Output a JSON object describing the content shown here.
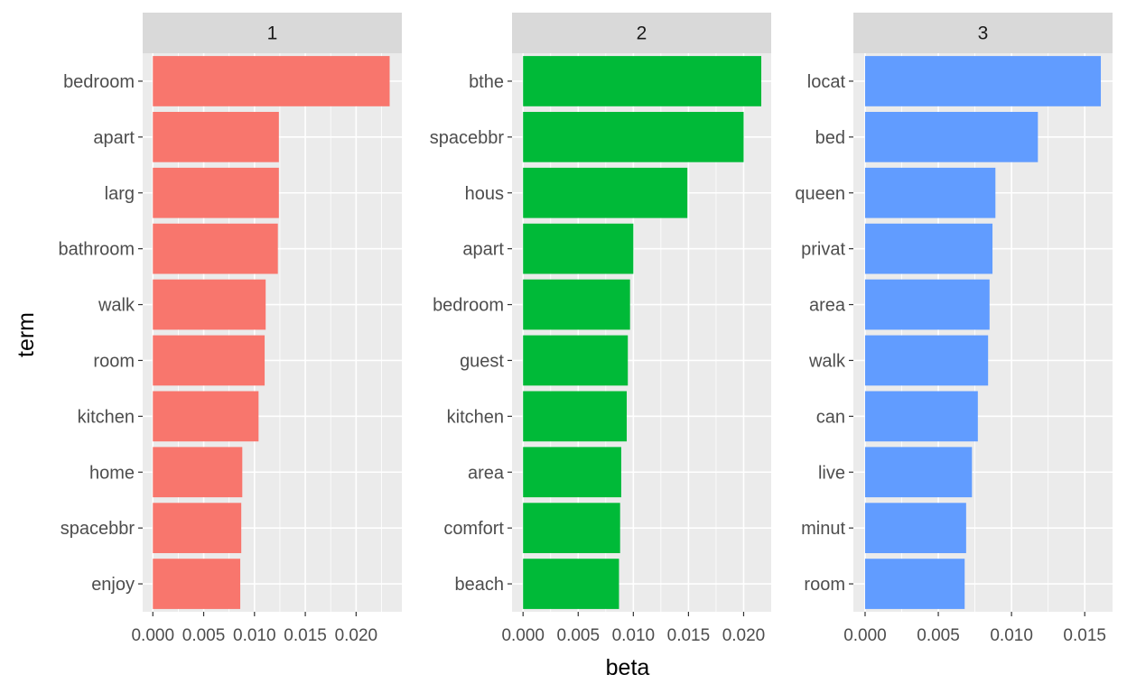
{
  "chart_data": {
    "type": "bar",
    "orientation": "horizontal",
    "facet": true,
    "xlabel": "beta",
    "ylabel": "term",
    "grid": true,
    "panels": [
      {
        "strip": "1",
        "color": "#F8766D",
        "xlim": [
          -0.001,
          0.0245
        ],
        "ticks": [
          0.0,
          0.005,
          0.01,
          0.015,
          0.02
        ],
        "tick_labels": [
          "0.000",
          "0.005",
          "0.010",
          "0.015",
          "0.020"
        ],
        "terms": [
          "bedroom",
          "apart",
          "larg",
          "bathroom",
          "walk",
          "room",
          "kitchen",
          "home",
          "spacebbr",
          "enjoy"
        ],
        "values": [
          0.0233,
          0.0124,
          0.0124,
          0.0123,
          0.0111,
          0.011,
          0.0104,
          0.0088,
          0.0087,
          0.0086
        ]
      },
      {
        "strip": "2",
        "color": "#00BA38",
        "xlim": [
          -0.001,
          0.0225
        ],
        "ticks": [
          0.0,
          0.005,
          0.01,
          0.015,
          0.02
        ],
        "tick_labels": [
          "0.000",
          "0.005",
          "0.010",
          "0.015",
          "0.020"
        ],
        "terms": [
          "bthe",
          "spacebbr",
          "hous",
          "apart",
          "bedroom",
          "guest",
          "kitchen",
          "area",
          "comfort",
          "beach"
        ],
        "values": [
          0.0216,
          0.02,
          0.0149,
          0.01,
          0.0097,
          0.0095,
          0.0094,
          0.0089,
          0.0088,
          0.0087
        ]
      },
      {
        "strip": "3",
        "color": "#619CFF",
        "xlim": [
          -0.0008,
          0.0169
        ],
        "ticks": [
          0.0,
          0.005,
          0.01,
          0.015
        ],
        "tick_labels": [
          "0.000",
          "0.005",
          "0.010",
          "0.015"
        ],
        "terms": [
          "locat",
          "bed",
          "queen",
          "privat",
          "area",
          "walk",
          "can",
          "live",
          "minut",
          "room"
        ],
        "values": [
          0.0161,
          0.0118,
          0.0089,
          0.0087,
          0.0085,
          0.0084,
          0.0077,
          0.0073,
          0.0069,
          0.0068
        ]
      }
    ]
  }
}
